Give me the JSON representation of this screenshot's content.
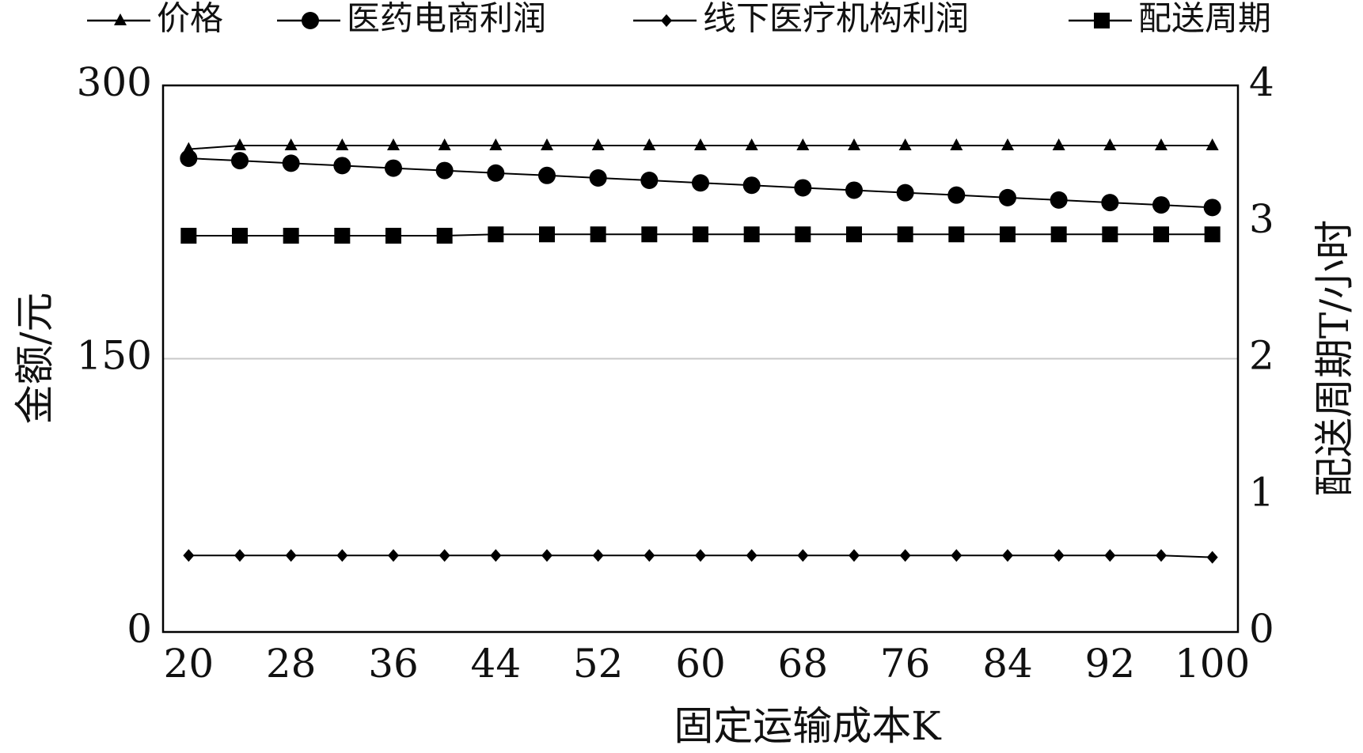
{
  "chart_data": {
    "type": "line",
    "x": [
      20,
      24,
      28,
      32,
      36,
      40,
      44,
      48,
      52,
      56,
      60,
      64,
      68,
      72,
      76,
      80,
      84,
      88,
      92,
      96,
      100
    ],
    "xlim": [
      18,
      102
    ],
    "xticks": [
      20,
      28,
      36,
      44,
      52,
      60,
      68,
      76,
      84,
      92,
      100
    ],
    "ylim": [
      0,
      300
    ],
    "yticks": [
      0,
      150,
      300
    ],
    "y2lim": [
      0,
      4
    ],
    "y2ticks": [
      0,
      1,
      2,
      3,
      4
    ],
    "grid": true,
    "x_label": "固定运输成本K",
    "y_label": "金额/元",
    "y2_label": "配送周期T/小时",
    "series": [
      {
        "name": "价格",
        "color": "#000000",
        "marker": "triangle",
        "values": [
          265,
          267,
          267,
          267,
          267,
          267,
          267,
          267,
          267,
          267,
          267,
          267,
          267,
          267,
          267,
          267,
          267,
          267,
          267,
          267,
          267
        ]
      },
      {
        "name": "医药电商利润",
        "color": "#000000",
        "marker": "circle",
        "values": [
          260,
          258.7,
          257.3,
          256,
          254.6,
          253.3,
          251.9,
          250.6,
          249.2,
          247.9,
          246.5,
          245.2,
          243.8,
          242.5,
          241.1,
          239.8,
          238.4,
          237.1,
          235.7,
          234.4,
          233
        ]
      },
      {
        "name": "线下医疗机构利润",
        "color": "#000000",
        "marker": "dot",
        "values": [
          42,
          42,
          42,
          42,
          42,
          42,
          42,
          42,
          42,
          42,
          42,
          42,
          42,
          42,
          42,
          42,
          42,
          42,
          42,
          42,
          41
        ]
      },
      {
        "name": "配送周期",
        "color": "#000000",
        "marker": "square",
        "axis": "y2",
        "values": [
          2.9,
          2.9,
          2.9,
          2.9,
          2.9,
          2.9,
          2.91,
          2.91,
          2.91,
          2.91,
          2.91,
          2.91,
          2.91,
          2.91,
          2.91,
          2.91,
          2.91,
          2.91,
          2.91,
          2.91,
          2.91
        ]
      }
    ]
  }
}
